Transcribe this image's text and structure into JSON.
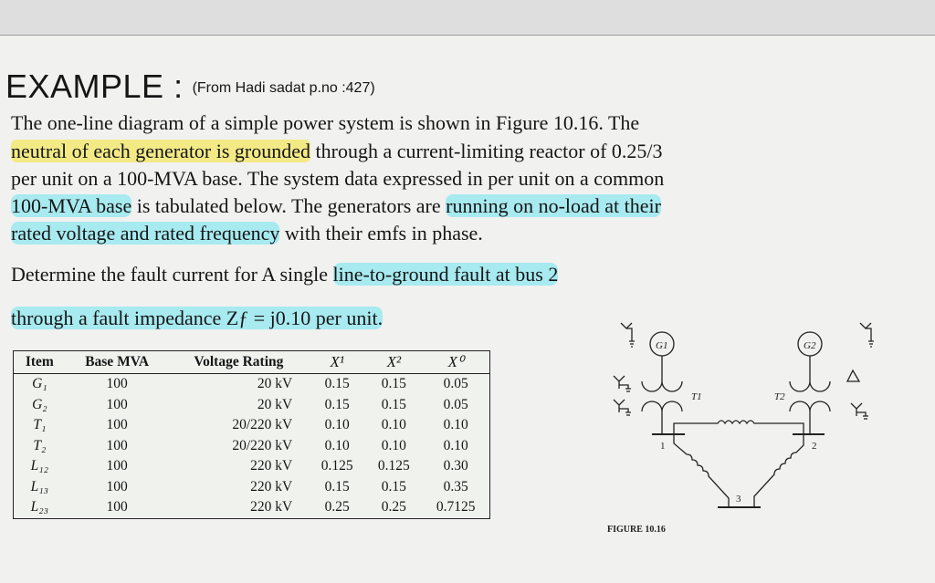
{
  "title": "EXAMPLE :",
  "source": "(From Hadi sadat p.no :427)",
  "paragraph": {
    "l1": "The one-line diagram of a simple power system is shown in Figure 10.16. The",
    "l2a": "neutral of each generator is grounded",
    "l2b": " through a current-limiting reactor of 0.25/3",
    "l3": "per unit on a 100-MVA base. The system data expressed in per unit on a common",
    "l4a": "100-MVA base",
    "l4b": " is tabulated below. The generators are ",
    "l4c": "running on no-load at their",
    "l5a": "rated voltage and rated frequency",
    "l5b": " with their emfs in phase."
  },
  "question": {
    "l1a": "Determine the fault current for A single ",
    "l1b": "line-to-ground fault at bus 2",
    "l2": "through a fault impedance Zƒ = j0.10 per unit."
  },
  "table": {
    "headers": [
      "Item",
      "Base MVA",
      "Voltage Rating",
      "X¹",
      "X²",
      "X⁰"
    ],
    "rows": [
      [
        "G₁",
        "100",
        "20 kV",
        "0.15",
        "0.15",
        "0.05"
      ],
      [
        "G₂",
        "100",
        "20 kV",
        "0.15",
        "0.15",
        "0.05"
      ],
      [
        "T₁",
        "100",
        "20/220 kV",
        "0.10",
        "0.10",
        "0.10"
      ],
      [
        "T₂",
        "100",
        "20/220 kV",
        "0.10",
        "0.10",
        "0.10"
      ],
      [
        "L₁₂",
        "100",
        "220 kV",
        "0.125",
        "0.125",
        "0.30"
      ],
      [
        "L₁₃",
        "100",
        "220 kV",
        "0.15",
        "0.15",
        "0.35"
      ],
      [
        "L₂₃",
        "100",
        "220 kV",
        "0.25",
        "0.25",
        "0.7125"
      ]
    ]
  },
  "figure": {
    "g1": "G1",
    "g2": "G2",
    "t1": "T1",
    "t2": "T2",
    "bus1": "1",
    "bus2": "2",
    "bus3": "3",
    "caption": "FIGURE 10.16"
  }
}
